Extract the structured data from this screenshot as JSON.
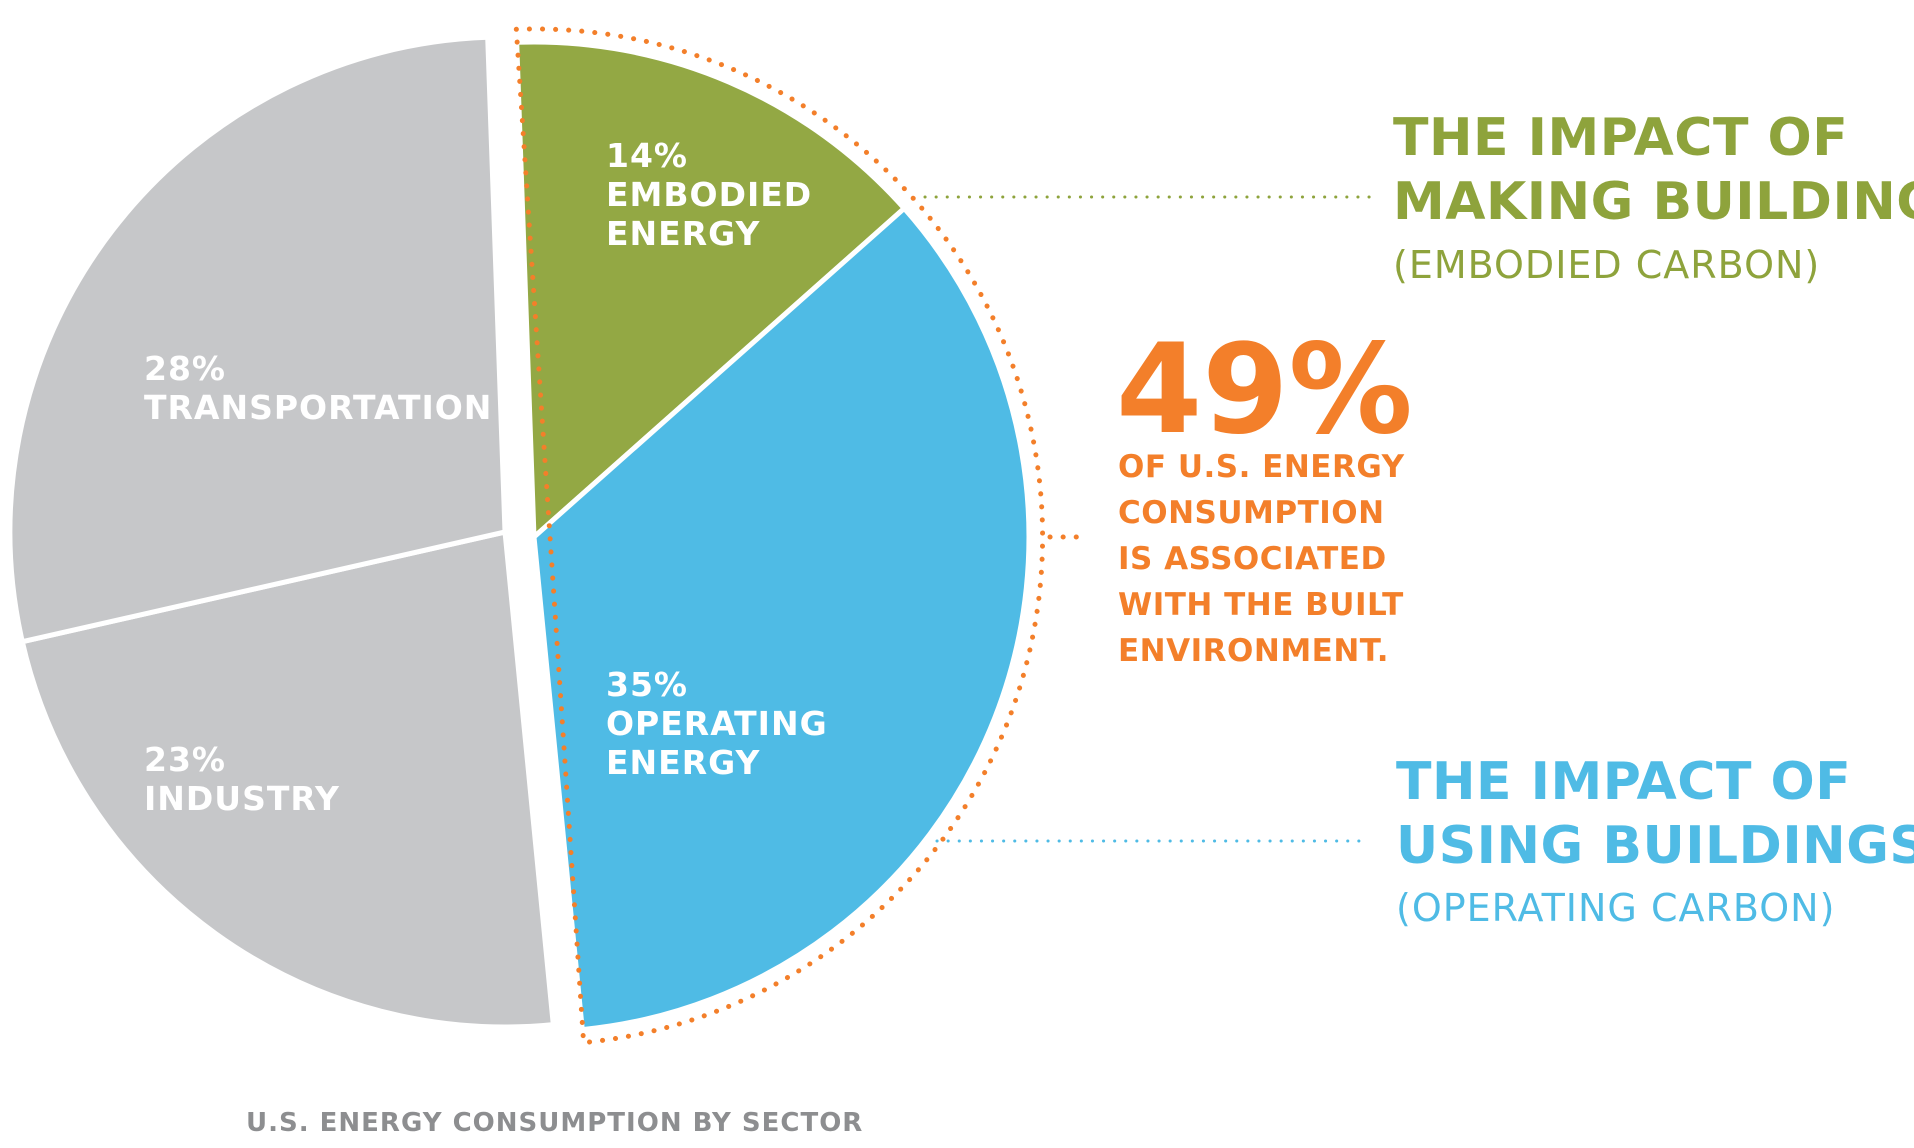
{
  "chart_data": {
    "type": "pie",
    "title": "U.S. ENERGY CONSUMPTION BY SECTOR",
    "slices": [
      {
        "pct_label": "14%",
        "name_lines": [
          "EMBODIED",
          "ENERGY"
        ],
        "value": 14,
        "color": "#93a844"
      },
      {
        "pct_label": "35%",
        "name_lines": [
          "OPERATING",
          "ENERGY"
        ],
        "value": 35,
        "color": "#4fbbe5"
      },
      {
        "pct_label": "23%",
        "name_lines": [
          "INDUSTRY"
        ],
        "value": 23,
        "color": "#c6c7c9"
      },
      {
        "pct_label": "28%",
        "name_lines": [
          "TRANSPORTATION"
        ],
        "value": 28,
        "color": "#c6c7c9"
      }
    ]
  },
  "callouts": {
    "making": {
      "title_lines": [
        "THE IMPACT OF",
        "MAKING BUILDINGS"
      ],
      "subtitle": "(EMBODIED CARBON)",
      "color": "#8ea33c"
    },
    "using": {
      "title_lines": [
        "THE IMPACT OF",
        "USING BUILDINGS"
      ],
      "subtitle": "(OPERATING CARBON)",
      "color": "#4fbbe5"
    },
    "built_environment": {
      "value": "49%",
      "lines": [
        "OF U.S. ENERGY",
        "CONSUMPTION",
        "IS ASSOCIATED",
        "WITH THE BUILT",
        "ENVIRONMENT."
      ],
      "color": "#f37f2a"
    }
  },
  "colors": {
    "title": "#8d8e90",
    "bracket": "#f37f2a"
  }
}
